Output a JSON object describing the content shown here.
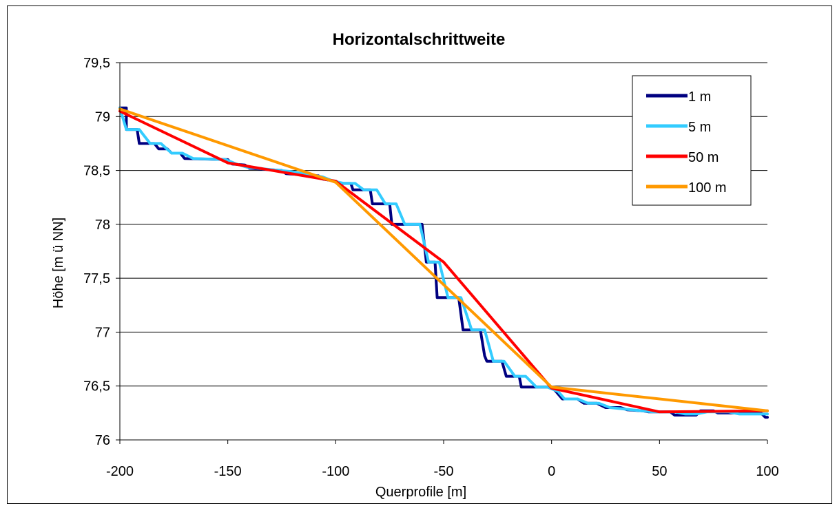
{
  "chart_data": {
    "type": "line",
    "title": "Horizontalschrittweite",
    "xlabel": "Querprofile [m]",
    "ylabel": "Höhe [m ü NN]",
    "xlim": [
      -200,
      100
    ],
    "ylim": [
      76,
      79.5
    ],
    "x_ticks": [
      "-200",
      "-150",
      "-100",
      "-50",
      "0",
      "50",
      "100"
    ],
    "x_tick_values": [
      -200,
      -150,
      -100,
      -50,
      0,
      50,
      100
    ],
    "y_ticks": [
      "76",
      "76,5",
      "77",
      "77,5",
      "78",
      "78,5",
      "79",
      "79,5"
    ],
    "y_tick_values": [
      76,
      76.5,
      77,
      77.5,
      78,
      78.5,
      79,
      79.5
    ],
    "grid": "horizontal",
    "legend_position": "top-right",
    "series": [
      {
        "name": "1 m",
        "color": "#000080",
        "points": [
          [
            -200,
            79.08
          ],
          [
            -197,
            79.08
          ],
          [
            -197,
            78.88
          ],
          [
            -192,
            78.88
          ],
          [
            -191,
            78.75
          ],
          [
            -185,
            78.75
          ],
          [
            -184,
            78.75
          ],
          [
            -182,
            78.7
          ],
          [
            -178,
            78.7
          ],
          [
            -176,
            78.66
          ],
          [
            -172,
            78.66
          ],
          [
            -170,
            78.61
          ],
          [
            -150,
            78.6
          ],
          [
            -148,
            78.56
          ],
          [
            -142,
            78.55
          ],
          [
            -140,
            78.52
          ],
          [
            -125,
            78.5
          ],
          [
            -123,
            78.47
          ],
          [
            -108,
            78.45
          ],
          [
            -106,
            78.42
          ],
          [
            -100,
            78.4
          ],
          [
            -98,
            78.38
          ],
          [
            -93,
            78.38
          ],
          [
            -92,
            78.32
          ],
          [
            -85,
            78.32
          ],
          [
            -84,
            78.32
          ],
          [
            -83,
            78.19
          ],
          [
            -76,
            78.19
          ],
          [
            -75,
            78.19
          ],
          [
            -74,
            78.0
          ],
          [
            -60,
            78.0
          ],
          [
            -58,
            77.65
          ],
          [
            -54,
            77.65
          ],
          [
            -53,
            77.32
          ],
          [
            -49,
            77.32
          ],
          [
            -45,
            77.32
          ],
          [
            -43,
            77.32
          ],
          [
            -41,
            77.02
          ],
          [
            -35,
            77.02
          ],
          [
            -33,
            77.02
          ],
          [
            -31,
            76.78
          ],
          [
            -30,
            76.73
          ],
          [
            -25,
            76.73
          ],
          [
            -23,
            76.73
          ],
          [
            -21,
            76.59
          ],
          [
            -17,
            76.59
          ],
          [
            -15,
            76.59
          ],
          [
            -14,
            76.49
          ],
          [
            -5,
            76.49
          ],
          [
            0,
            76.49
          ],
          [
            2,
            76.45
          ],
          [
            5,
            76.38
          ],
          [
            10,
            76.38
          ],
          [
            12,
            76.38
          ],
          [
            15,
            76.34
          ],
          [
            21,
            76.34
          ],
          [
            25,
            76.3
          ],
          [
            32,
            76.3
          ],
          [
            35,
            76.28
          ],
          [
            42,
            76.27
          ],
          [
            45,
            76.26
          ],
          [
            55,
            76.26
          ],
          [
            57,
            76.23
          ],
          [
            67,
            76.23
          ],
          [
            69,
            76.27
          ],
          [
            75,
            76.27
          ],
          [
            77,
            76.25
          ],
          [
            87,
            76.25
          ],
          [
            89,
            76.25
          ],
          [
            97,
            76.25
          ],
          [
            99,
            76.21
          ],
          [
            100,
            76.21
          ]
        ]
      },
      {
        "name": "5 m",
        "color": "#33CCFF",
        "points": [
          [
            -200,
            79.08
          ],
          [
            -197,
            78.88
          ],
          [
            -191,
            78.88
          ],
          [
            -186,
            78.75
          ],
          [
            -181,
            78.75
          ],
          [
            -176,
            78.66
          ],
          [
            -171,
            78.66
          ],
          [
            -166,
            78.61
          ],
          [
            -151,
            78.6
          ],
          [
            -146,
            78.56
          ],
          [
            -141,
            78.53
          ],
          [
            -121,
            78.49
          ],
          [
            -106,
            78.44
          ],
          [
            -101,
            78.4
          ],
          [
            -96,
            78.38
          ],
          [
            -91,
            78.38
          ],
          [
            -87,
            78.32
          ],
          [
            -81,
            78.32
          ],
          [
            -77,
            78.19
          ],
          [
            -72,
            78.19
          ],
          [
            -68,
            78.0
          ],
          [
            -61,
            78.0
          ],
          [
            -57,
            77.65
          ],
          [
            -52,
            77.65
          ],
          [
            -48,
            77.32
          ],
          [
            -42,
            77.32
          ],
          [
            -37,
            77.02
          ],
          [
            -31,
            77.02
          ],
          [
            -27,
            76.73
          ],
          [
            -22,
            76.73
          ],
          [
            -17,
            76.59
          ],
          [
            -12,
            76.59
          ],
          [
            -7,
            76.49
          ],
          [
            -2,
            76.49
          ],
          [
            3,
            76.45
          ],
          [
            6,
            76.38
          ],
          [
            12,
            76.38
          ],
          [
            17,
            76.34
          ],
          [
            22,
            76.34
          ],
          [
            27,
            76.3
          ],
          [
            37,
            76.28
          ],
          [
            47,
            76.26
          ],
          [
            57,
            76.26
          ],
          [
            62,
            76.24
          ],
          [
            67,
            76.24
          ],
          [
            72,
            76.26
          ],
          [
            82,
            76.26
          ],
          [
            87,
            76.24
          ],
          [
            97,
            76.24
          ],
          [
            100,
            76.24
          ]
        ]
      },
      {
        "name": "50 m",
        "color": "#FF0000",
        "points": [
          [
            -200,
            79.05
          ],
          [
            -150,
            78.57
          ],
          [
            -100,
            78.4
          ],
          [
            -50,
            77.65
          ],
          [
            0,
            76.48
          ],
          [
            50,
            76.26
          ],
          [
            100,
            76.27
          ]
        ]
      },
      {
        "name": "100 m",
        "color": "#FF9900",
        "points": [
          [
            -200,
            79.07
          ],
          [
            -100,
            78.39
          ],
          [
            0,
            76.49
          ],
          [
            100,
            76.27
          ]
        ]
      }
    ]
  }
}
